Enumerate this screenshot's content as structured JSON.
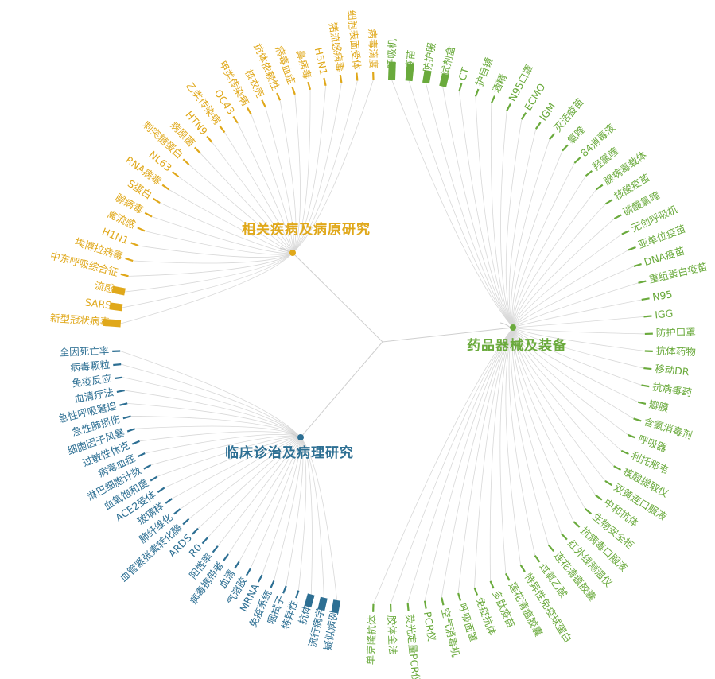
{
  "groups": [
    {
      "name": "相关疾病及病原研究",
      "color": "#e0a81a",
      "leaves": [
        "新型冠状病毒",
        "SARS",
        "流感",
        "中东呼吸综合征",
        "埃博拉病毒",
        "H1N1",
        "禽流感",
        "腺病毒",
        "S蛋白",
        "RNA病毒",
        "NL63",
        "刺突糖蛋白",
        "病原菌",
        "HTN9",
        "乙类传染病",
        "OC43",
        "甲类传染病",
        "核衣壳",
        "抗体依赖性",
        "病毒血症",
        "鼻病毒",
        "H5N1",
        "猪流感病毒",
        "细胞表面受体",
        "病毒滴度"
      ],
      "values": [
        3,
        2,
        2,
        1,
        1,
        1,
        1,
        1,
        1,
        1,
        1,
        1,
        1,
        1,
        1,
        1,
        1,
        1,
        1,
        1,
        1,
        1,
        1,
        1,
        1
      ]
    },
    {
      "name": "药品器械及装备",
      "color": "#6aaa3c",
      "leaves": [
        "呼吸机",
        "疫苗",
        "防护服",
        "试剂盒",
        "CT",
        "护目镜",
        "酒精",
        "N95口罩",
        "ECMO",
        "IGM",
        "灭活疫苗",
        "氯喹",
        "84消毒液",
        "羟氯喹",
        "腺病毒载体",
        "核酸疫苗",
        "磷酸氯喹",
        "无创呼吸机",
        "亚单位疫苗",
        "DNA疫苗",
        "重组蛋白疫苗",
        "N95",
        "IGG",
        "防护口罩",
        "抗体药物",
        "移动DR",
        "抗病毒药",
        "瓣膜",
        "含氯消毒剂",
        "呼吸器",
        "利托那韦",
        "核酸提取仪",
        "双黄连口服液",
        "中和抗体",
        "生物安全柜",
        "抗病毒口服液",
        "红外线测温仪",
        "连花清瘟胶囊",
        "过氧乙酸",
        "特异性免疫球蛋白",
        "莲花清瘟胶囊",
        "多肽疫苗",
        "免疫抗体",
        "呼吸面罩",
        "空气消毒机",
        "PCR仪",
        "荧光定量PCR仪",
        "胶体金法",
        "单克隆抗体"
      ],
      "values": [
        3,
        3,
        2,
        2,
        1,
        1,
        1,
        1,
        1,
        1,
        1,
        1,
        1,
        1,
        1,
        1,
        1,
        1,
        1,
        1,
        1,
        1,
        1,
        1,
        1,
        1,
        1,
        1,
        1,
        1,
        1,
        1,
        1,
        1,
        1,
        1,
        1,
        1,
        1,
        1,
        1,
        1,
        1,
        1,
        1,
        1,
        1,
        1,
        1
      ]
    },
    {
      "name": "临床诊治及病理研究",
      "color": "#2d6f93",
      "leaves": [
        "疑似病例",
        "流行病学",
        "抗体",
        "特异性",
        "咽拭子",
        "免疫系统",
        "MRNA",
        "气溶胶",
        "血清",
        "病毒携带者",
        "阳性率",
        "R0",
        "ARDS",
        "血管紧张素转化酶",
        "肺纤维化",
        "玻璃样",
        "ACE2受体",
        "血氧饱和度",
        "淋巴细胞计数",
        "病毒血症",
        "过敏性休克",
        "细胞因子风暴",
        "急性肺损伤",
        "急性呼吸窘迫",
        "血清疗法",
        "免疫反应",
        "病毒颗粒",
        "全因死亡率"
      ],
      "values": [
        2,
        2,
        2,
        1,
        1,
        1,
        1,
        1,
        1,
        1,
        1,
        1,
        1,
        1,
        1,
        1,
        1,
        1,
        1,
        1,
        1,
        1,
        1,
        1,
        1,
        1,
        1,
        1
      ]
    }
  ]
}
